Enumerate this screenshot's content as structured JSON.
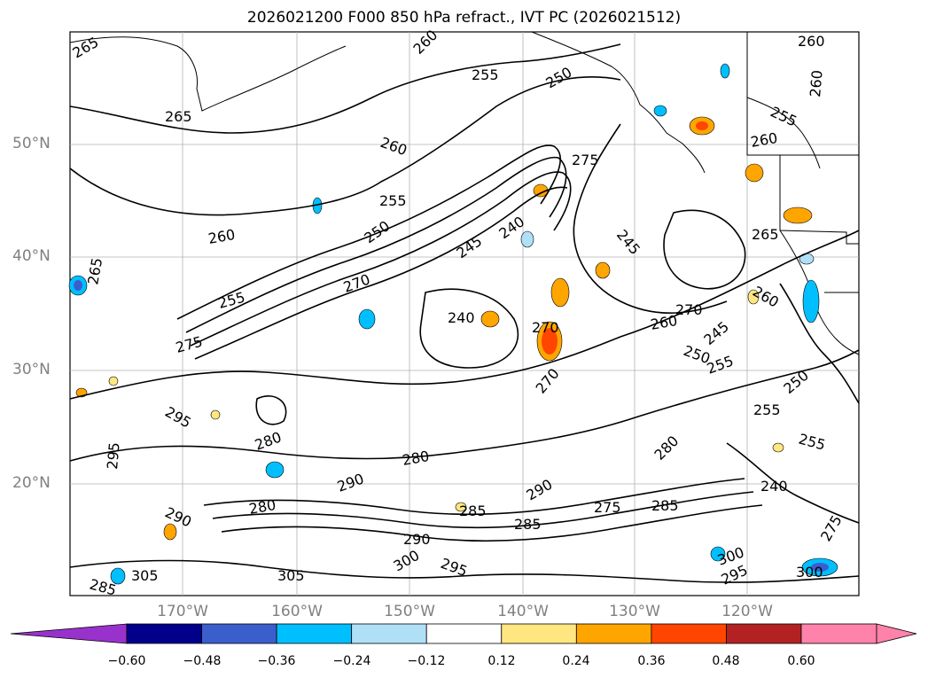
{
  "title": "2026021200 F000 850 hPa refract., IVT PC (2026021512)",
  "lat_labels": [
    "50°N",
    "40°N",
    "30°N",
    "20°N"
  ],
  "lon_labels": [
    "170°W",
    "160°W",
    "150°W",
    "140°W",
    "130°W",
    "120°W"
  ],
  "contour_labels": [
    "265",
    "260",
    "255",
    "250",
    "245",
    "240",
    "275",
    "270",
    "280",
    "285",
    "290",
    "295",
    "300",
    "305"
  ],
  "colorbar": {
    "ticks": [
      "−0.60",
      "−0.48",
      "−0.36",
      "−0.24",
      "−0.12",
      "0.12",
      "0.24",
      "0.36",
      "0.48",
      "0.60"
    ],
    "colors": [
      "#9932cc",
      "#00008b",
      "#3a5fcd",
      "#00bfff",
      "#b0e0f8",
      "#ffffff",
      "#ffe680",
      "#ffa500",
      "#ff4500",
      "#b22222",
      "#ff82ab"
    ]
  }
}
